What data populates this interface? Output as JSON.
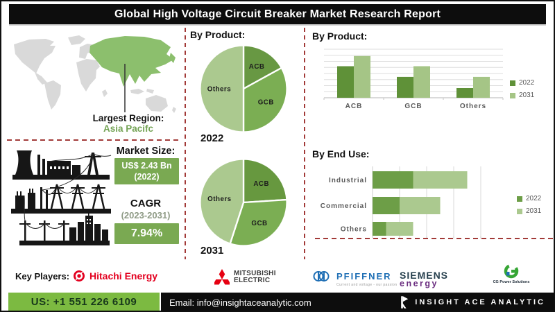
{
  "title": "Global High Voltage Circuit Breaker Market Research Report",
  "region": {
    "label": "Largest Region:",
    "value": "Asia Pacifc"
  },
  "market_size": {
    "heading": "Market Size:",
    "value": "US$ 2.43 Bn",
    "value_year": "(2022)",
    "cagr_label": "CAGR",
    "cagr_period": "(2023-2031)",
    "cagr_value": "7.94%"
  },
  "colors": {
    "box_green": "#7aa952",
    "bright_green": "#7cba41",
    "map_green": "#8cbf6d",
    "dark_green": "#5f9138",
    "mid_green": "#7bae53",
    "light_green": "#abc98f",
    "dash_red": "#a23a38",
    "hitachi_red": "#e3001f",
    "mitsubishi_red": "#e60012",
    "pfiffner_blue": "#1f6fb5",
    "siemens_dark": "#27404e",
    "siemens_purple": "#6a2d7f",
    "bar_black": "#0d0d0d"
  },
  "chart_data": [
    {
      "type": "pie",
      "title": "By Product:",
      "year": "2022",
      "labels": [
        "ACB",
        "GCB",
        "Others"
      ],
      "values": [
        17,
        33,
        50
      ],
      "unit": "percent",
      "colors": [
        "#689843",
        "#7bae53",
        "#abc98f"
      ]
    },
    {
      "type": "pie",
      "title": "By Product:",
      "year": "2031",
      "labels": [
        "ACB",
        "GCB",
        "Others"
      ],
      "values": [
        24,
        31,
        45
      ],
      "unit": "percent",
      "colors": [
        "#67983f",
        "#7bae53",
        "#abc98f"
      ]
    },
    {
      "type": "bar",
      "title": "By Product:",
      "categories": [
        "ACB",
        "GCB",
        "Others"
      ],
      "series": [
        {
          "name": "2022",
          "color": "#5f9138",
          "values": [
            65,
            43,
            20
          ]
        },
        {
          "name": "2031",
          "color": "#a5c586",
          "values": [
            86,
            65,
            43
          ]
        }
      ],
      "ylim": [
        0,
        100
      ],
      "grid": true,
      "legend_position": "right"
    },
    {
      "type": "bar-h-stacked",
      "title": "By End Use:",
      "categories": [
        "Industrial",
        "Commercial",
        "Others"
      ],
      "series": [
        {
          "name": "2022",
          "color": "#6d9e47",
          "values": [
            1.5,
            1.0,
            0.5
          ]
        },
        {
          "name": "2031",
          "color": "#abc98f",
          "values": [
            2.0,
            1.5,
            1.0
          ]
        }
      ],
      "xlim": [
        0,
        4
      ],
      "grid": true,
      "legend_position": "right"
    }
  ],
  "key_players": {
    "heading": "Key Players:",
    "players": [
      {
        "name": "Hitachi Energy"
      },
      {
        "line1": "MITSUBISHI",
        "line2": "ELECTRIC"
      },
      {
        "name": "PFIFFNER",
        "tagline": "Current and voltage - our passion"
      },
      {
        "line1": "SIEMENS",
        "line2": "energy"
      },
      {
        "name": "CG Power Solutions"
      }
    ]
  },
  "footer": {
    "phone": "US: +1 551 226 6109",
    "email": "Email: info@insightaceanalytic.com",
    "brand": "INSIGHT ACE ANALYTIC"
  }
}
